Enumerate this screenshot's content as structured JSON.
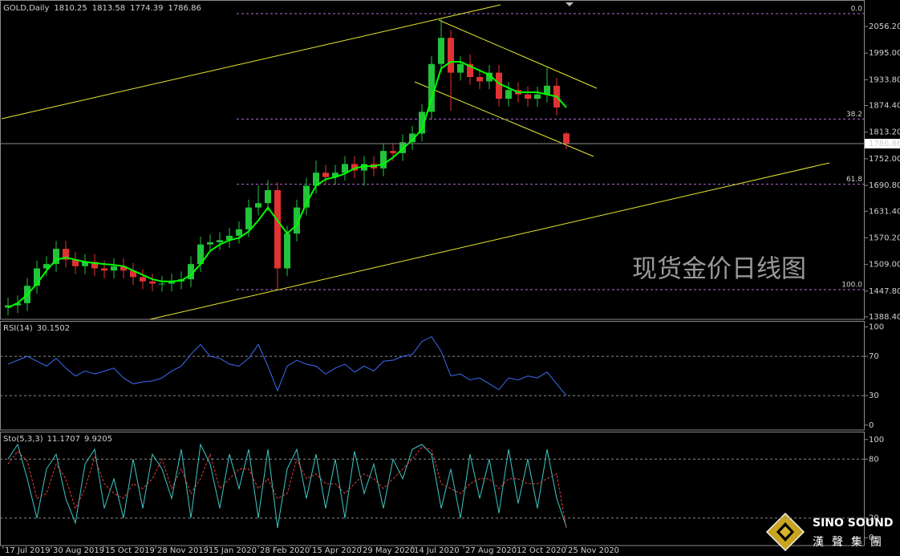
{
  "chart_data": [
    {
      "type": "candlestick",
      "title": "GOLD,Daily",
      "x": [
        4,
        10,
        16,
        22,
        28,
        34,
        40,
        46,
        52,
        58,
        64,
        70,
        76,
        82,
        88,
        94,
        100,
        106,
        112,
        118,
        124,
        130,
        136,
        142,
        148,
        154,
        160,
        166,
        172,
        178,
        184,
        190,
        196,
        202,
        208,
        214,
        220,
        226,
        232,
        238,
        244,
        250,
        256,
        262,
        268,
        274,
        280,
        286,
        292,
        298,
        304,
        310,
        316,
        322,
        328,
        334,
        340,
        346,
        352
      ],
      "open": [
        1410,
        1415,
        1420,
        1460,
        1500,
        1510,
        1545,
        1520,
        1505,
        1515,
        1500,
        1495,
        1505,
        1495,
        1480,
        1470,
        1465,
        1465,
        1470,
        1475,
        1510,
        1555,
        1560,
        1565,
        1575,
        1590,
        1640,
        1650,
        1680,
        1500,
        1580,
        1640,
        1690,
        1720,
        1710,
        1720,
        1740,
        1725,
        1740,
        1730,
        1770,
        1765,
        1790,
        1810,
        1860,
        1970,
        2030,
        1950,
        1970,
        1940,
        1930,
        1950,
        1890,
        1910,
        1900,
        1890,
        1900,
        1920,
        1810.25
      ],
      "high": [
        1433,
        1438,
        1478,
        1518,
        1528,
        1563,
        1563,
        1538,
        1533,
        1533,
        1518,
        1523,
        1523,
        1513,
        1498,
        1488,
        1483,
        1488,
        1493,
        1528,
        1573,
        1578,
        1583,
        1593,
        1608,
        1658,
        1690,
        1703,
        1698,
        1598,
        1658,
        1708,
        1748,
        1738,
        1738,
        1758,
        1758,
        1758,
        1758,
        1788,
        1788,
        1808,
        1828,
        1878,
        1988,
        2075,
        2048,
        1988,
        1992,
        1958,
        1968,
        1968,
        1928,
        1928,
        1918,
        1918,
        1965,
        1938,
        1813.58
      ],
      "low": [
        1392,
        1397,
        1402,
        1442,
        1482,
        1492,
        1502,
        1487,
        1487,
        1482,
        1477,
        1477,
        1477,
        1462,
        1452,
        1447,
        1447,
        1447,
        1452,
        1457,
        1492,
        1537,
        1542,
        1547,
        1557,
        1572,
        1622,
        1632,
        1451,
        1482,
        1562,
        1622,
        1672,
        1692,
        1692,
        1702,
        1707,
        1690,
        1712,
        1712,
        1747,
        1747,
        1772,
        1792,
        1842,
        1952,
        1862,
        1932,
        1922,
        1912,
        1912,
        1872,
        1872,
        1882,
        1872,
        1872,
        1882,
        1852,
        1774.39
      ],
      "close": [
        1415,
        1420,
        1460,
        1500,
        1510,
        1545,
        1520,
        1505,
        1515,
        1500,
        1495,
        1505,
        1495,
        1480,
        1470,
        1465,
        1465,
        1470,
        1475,
        1510,
        1555,
        1560,
        1565,
        1575,
        1590,
        1640,
        1650,
        1680,
        1500,
        1580,
        1640,
        1690,
        1720,
        1710,
        1720,
        1740,
        1725,
        1740,
        1730,
        1770,
        1765,
        1790,
        1810,
        1860,
        1970,
        2030,
        1950,
        1970,
        1940,
        1930,
        1950,
        1890,
        1910,
        1900,
        1890,
        1900,
        1920,
        1870,
        1786.86
      ],
      "up_color": "#22c43a",
      "down_color": "#e23232",
      "ma": {
        "color": "#00ff00",
        "values": [
          1410,
          1420,
          1440,
          1465,
          1495,
          1520,
          1525,
          1520,
          1515,
          1512,
          1510,
          1508,
          1505,
          1495,
          1485,
          1475,
          1470,
          1470,
          1472,
          1485,
          1510,
          1540,
          1555,
          1565,
          1570,
          1585,
          1610,
          1640,
          1610,
          1580,
          1600,
          1650,
          1690,
          1705,
          1710,
          1718,
          1730,
          1735,
          1735,
          1740,
          1755,
          1775,
          1795,
          1820,
          1890,
          1960,
          1975,
          1975,
          1965,
          1955,
          1945,
          1925,
          1915,
          1905,
          1905,
          1905,
          1900,
          1895,
          1870
        ]
      },
      "xlim": [
        -1,
        538
      ],
      "ylim": [
        1382.9,
        2117.1
      ],
      "yticks": [
        {
          "value": 2056.2,
          "label": "2056.20"
        },
        {
          "value": 1995,
          "label": "1995.00"
        },
        {
          "value": 1933.8,
          "label": "1933.80"
        },
        {
          "value": 1874.4,
          "label": "1874.40"
        },
        {
          "value": 1813.2,
          "label": "1813.20"
        },
        {
          "value": 1752,
          "label": "1752.00"
        },
        {
          "value": 1690.8,
          "label": "1690.80"
        },
        {
          "value": 1631.4,
          "label": "1631.40"
        },
        {
          "value": 1570.2,
          "label": "1570.20"
        },
        {
          "value": 1509,
          "label": "1509.00"
        },
        {
          "value": 1447.8,
          "label": "1447.80"
        },
        {
          "value": 1388.4,
          "label": "1388.40"
        }
      ],
      "fib_levels": [
        {
          "value": 2085.7,
          "label": "0.0"
        },
        {
          "value": 1843.3,
          "label": "38.2"
        },
        {
          "value": 1693.5,
          "label": "61.8"
        },
        {
          "value": 1451.1,
          "label": "100.0"
        }
      ],
      "fib_color": "#b06cd8",
      "trendlines": [
        {
          "x": [
            0,
            311
          ],
          "y": [
            1844.1,
            2106.0
          ]
        },
        {
          "x": [
            92.5,
            516
          ],
          "y": [
            1382.9,
            1742.6
          ]
        },
        {
          "x": [
            272.5,
            371
          ],
          "y": [
            2071.0,
            1914.2
          ]
        },
        {
          "x": [
            257.5,
            369
          ],
          "y": [
            1928.9,
            1757.4
          ]
        }
      ],
      "trend_color": "#e8e830",
      "watermark": "现货金价日线图"
    },
    {
      "type": "line",
      "title": "RSI(14)",
      "x": [
        4,
        10,
        16,
        22,
        28,
        34,
        40,
        46,
        52,
        58,
        64,
        70,
        76,
        82,
        88,
        94,
        100,
        106,
        112,
        118,
        124,
        130,
        136,
        142,
        148,
        154,
        160,
        166,
        172,
        178,
        184,
        190,
        196,
        202,
        208,
        214,
        220,
        226,
        232,
        238,
        244,
        250,
        256,
        262,
        268,
        274,
        280,
        286,
        292,
        298,
        304,
        310,
        316,
        322,
        328,
        334,
        340,
        346,
        352
      ],
      "series": [
        {
          "color": "#3c6cf0",
          "dash": false,
          "values": [
            62,
            66,
            70,
            65,
            60,
            68,
            58,
            50,
            55,
            52,
            55,
            58,
            48,
            42,
            44,
            45,
            48,
            55,
            60,
            72,
            82,
            70,
            68,
            62,
            60,
            68,
            82,
            60,
            35,
            60,
            66,
            62,
            60,
            52,
            58,
            62,
            54,
            60,
            55,
            65,
            66,
            70,
            72,
            85,
            90,
            75,
            50,
            52,
            46,
            48,
            42,
            36,
            48,
            46,
            50,
            48,
            54,
            42,
            30.1502
          ]
        }
      ],
      "xlim": [
        -1,
        538
      ],
      "ylim": [
        -5,
        106
      ],
      "yticks": [
        100,
        70,
        30,
        0
      ],
      "levels": [
        70,
        30
      ]
    },
    {
      "type": "line",
      "title": "Sto(5,3,3)",
      "x": [
        4,
        10,
        16,
        22,
        28,
        34,
        40,
        46,
        52,
        58,
        64,
        70,
        76,
        82,
        88,
        94,
        100,
        106,
        112,
        118,
        124,
        130,
        136,
        142,
        148,
        154,
        160,
        166,
        172,
        178,
        184,
        190,
        196,
        202,
        208,
        214,
        220,
        226,
        232,
        238,
        244,
        250,
        256,
        262,
        268,
        274,
        280,
        286,
        292,
        298,
        304,
        310,
        316,
        322,
        328,
        334,
        340,
        346,
        352
      ],
      "series": [
        {
          "color": "#3ec8c8",
          "dash": false,
          "values": [
            80,
            95,
            60,
            20,
            70,
            85,
            40,
            15,
            75,
            90,
            30,
            60,
            20,
            80,
            30,
            85,
            70,
            40,
            90,
            20,
            95,
            75,
            30,
            85,
            50,
            90,
            20,
            90,
            10,
            70,
            90,
            40,
            85,
            30,
            80,
            20,
            88,
            45,
            75,
            30,
            80,
            60,
            90,
            95,
            85,
            30,
            70,
            20,
            85,
            40,
            80,
            25,
            90,
            35,
            80,
            30,
            90,
            40,
            11.1707
          ]
        },
        {
          "color": "#e04040",
          "dash": true,
          "values": [
            75,
            88,
            78,
            40,
            45,
            75,
            60,
            30,
            50,
            82,
            55,
            45,
            40,
            55,
            50,
            60,
            80,
            50,
            70,
            45,
            60,
            85,
            50,
            60,
            70,
            70,
            50,
            60,
            40,
            45,
            80,
            60,
            65,
            55,
            55,
            45,
            55,
            65,
            60,
            50,
            60,
            70,
            80,
            92,
            90,
            55,
            50,
            45,
            55,
            60,
            60,
            50,
            60,
            60,
            55,
            55,
            60,
            65,
            9.9205
          ]
        }
      ],
      "xlim": [
        -1,
        538
      ],
      "ylim": [
        -8,
        108
      ],
      "yticks": [
        100,
        80,
        20,
        0
      ],
      "levels": [
        80,
        20
      ],
      "xticks": [
        {
          "value": 1,
          "label": "17 Jul 2019"
        },
        {
          "value": 31,
          "label": "30 Aug 2019"
        },
        {
          "value": 63.5,
          "label": "15 Oct 2019"
        },
        {
          "value": 96,
          "label": "28 Nov 2019"
        },
        {
          "value": 128,
          "label": "15 Jan 2020"
        },
        {
          "value": 160,
          "label": "28 Feb 2020"
        },
        {
          "value": 192.5,
          "label": "15 Apr 2020"
        },
        {
          "value": 224,
          "label": "29 May 2020"
        },
        {
          "value": 256,
          "label": "14 Jul 2020"
        },
        {
          "value": 288,
          "label": "27 Aug 2020"
        },
        {
          "value": 320,
          "label": "12 Oct 2020"
        },
        {
          "value": 352,
          "label": "25 Nov 2020"
        }
      ]
    }
  ],
  "logo": {
    "name": "SINO SOUND",
    "subtitle": "漢聲集團"
  }
}
